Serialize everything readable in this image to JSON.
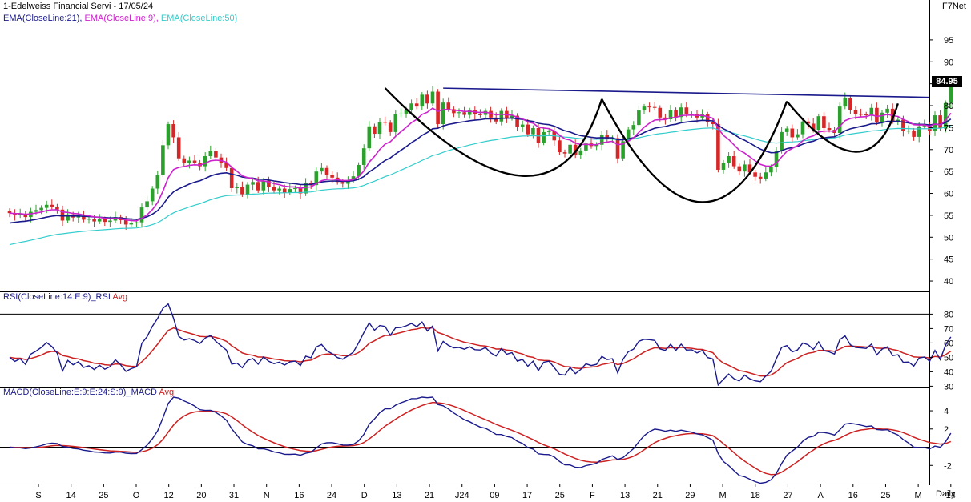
{
  "header": {
    "title": "1-Edelweiss Financial Servi - 17/05/24",
    "brand": "F7Net",
    "period": "Daily",
    "last_price": "84.95"
  },
  "colors": {
    "candle_up": "#2ca02c",
    "candle_down": "#d62728",
    "ema21": "#1a1a8c",
    "ema9": "#cc22cc",
    "ema50": "#33cccc",
    "signal": "#cc2222",
    "main": "#1a1a8c",
    "pattern": "#000000",
    "neckline": "#1a1a8c"
  },
  "chart_data": [
    {
      "type": "candlestick",
      "legend": [
        {
          "label": "EMA(CloseLine:21),",
          "color": "#1a1a8c"
        },
        {
          "label": "EMA(CloseLine:9),",
          "color": "#cc22cc"
        },
        {
          "label": "EMA(CloseLine:50)",
          "color": "#33cccc"
        }
      ],
      "ylim": [
        38,
        99
      ],
      "yticks": [
        40,
        45,
        50,
        55,
        60,
        65,
        70,
        75,
        80,
        85,
        90,
        95
      ],
      "x_tick_labels": [
        "S",
        "14",
        "25",
        "O",
        "12",
        "20",
        "31",
        "N",
        "16",
        "24",
        "D",
        "13",
        "21",
        "J24",
        "09",
        "17",
        "25",
        "F",
        "13",
        "21",
        "29",
        "M",
        "18",
        "27",
        "A",
        "16",
        "25",
        "M",
        "14"
      ],
      "last_price": 84.95,
      "close": [
        55.5,
        55.0,
        55.3,
        54.6,
        55.8,
        56.2,
        56.7,
        57.4,
        57.0,
        56.3,
        53.8,
        55.2,
        54.5,
        54.9,
        54.0,
        54.2,
        53.6,
        54.1,
        53.5,
        53.8,
        54.6,
        53.9,
        52.9,
        53.2,
        53.4,
        56.8,
        58.2,
        61.1,
        64.3,
        71.0,
        75.8,
        72.8,
        68.0,
        66.9,
        67.5,
        67.0,
        66.2,
        68.5,
        69.7,
        68.2,
        67.0,
        65.8,
        61.2,
        61.5,
        59.8,
        62.0,
        62.6,
        60.7,
        62.9,
        61.5,
        60.7,
        61.1,
        60.2,
        61.0,
        61.2,
        60.0,
        62.3,
        61.9,
        65.0,
        65.8,
        64.3,
        63.6,
        62.6,
        62.2,
        63.0,
        63.9,
        66.5,
        70.3,
        75.3,
        73.6,
        76.3,
        76.1,
        74.0,
        78.0,
        78.2,
        79.1,
        80.5,
        79.8,
        82.5,
        80.5,
        83.2,
        75.8,
        80.7,
        79.2,
        78.3,
        78.5,
        77.9,
        78.9,
        78.0,
        77.9,
        78.8,
        77.3,
        76.4,
        78.8,
        77.2,
        77.7,
        75.2,
        75.7,
        73.5,
        74.9,
        71.6,
        74.0,
        74.3,
        72.1,
        69.4,
        69.1,
        71.1,
        68.7,
        69.8,
        71.4,
        70.8,
        71.1,
        73.3,
        72.4,
        72.6,
        68.0,
        71.9,
        74.6,
        75.6,
        78.9,
        79.8,
        79.7,
        79.5,
        77.3,
        76.9,
        79.0,
        77.4,
        79.6,
        78.0,
        78.1,
        77.3,
        78.0,
        76.2,
        75.8,
        65.4,
        67.0,
        68.5,
        66.2,
        65.0,
        66.6,
        64.8,
        63.8,
        63.4,
        64.8,
        66.0,
        69.7,
        74.0,
        74.8,
        72.8,
        73.5,
        76.4,
        75.9,
        74.5,
        77.6,
        74.9,
        74.5,
        73.8,
        79.8,
        81.8,
        79.0,
        78.1,
        78.0,
        77.8,
        79.5,
        76.2,
        78.4,
        79.3,
        76.5,
        76.8,
        74.2,
        74.3,
        72.9,
        75.3,
        75.6,
        74.3,
        77.8,
        74.8,
        80.6,
        84.95
      ],
      "open": [
        56.0,
        55.5,
        55.0,
        55.3,
        54.6,
        55.8,
        56.2,
        56.7,
        57.4,
        57.0,
        56.3,
        53.8,
        55.2,
        54.5,
        54.9,
        54.0,
        54.2,
        53.6,
        54.1,
        53.5,
        53.8,
        54.6,
        53.9,
        52.9,
        53.2,
        53.4,
        56.8,
        58.2,
        61.1,
        64.3,
        71.0,
        75.8,
        72.8,
        68.0,
        66.9,
        67.5,
        67.0,
        66.2,
        68.5,
        69.7,
        68.2,
        67.0,
        65.8,
        61.2,
        61.5,
        59.8,
        62.0,
        62.6,
        60.7,
        62.9,
        61.5,
        60.7,
        61.1,
        60.2,
        61.0,
        61.2,
        60.0,
        62.3,
        61.9,
        65.0,
        65.8,
        64.3,
        63.6,
        62.6,
        62.2,
        63.0,
        63.9,
        66.5,
        70.3,
        75.3,
        73.6,
        76.3,
        76.1,
        74.0,
        78.0,
        78.2,
        79.1,
        80.5,
        79.8,
        82.5,
        80.5,
        83.2,
        75.8,
        80.7,
        79.2,
        78.3,
        78.5,
        77.9,
        78.9,
        78.0,
        77.9,
        78.8,
        77.3,
        76.4,
        78.8,
        77.2,
        77.7,
        75.2,
        75.7,
        73.5,
        74.9,
        71.6,
        74.0,
        74.3,
        72.1,
        69.4,
        69.1,
        71.1,
        68.7,
        69.8,
        71.4,
        70.8,
        71.1,
        73.3,
        72.4,
        72.6,
        68.0,
        71.9,
        74.6,
        75.6,
        78.9,
        79.8,
        79.7,
        79.5,
        77.3,
        76.9,
        79.0,
        77.4,
        79.6,
        78.0,
        78.1,
        77.3,
        78.0,
        76.2,
        75.8,
        65.4,
        67.0,
        68.5,
        66.2,
        65.0,
        66.6,
        64.8,
        63.8,
        63.4,
        64.8,
        66.0,
        69.7,
        74.0,
        74.8,
        72.8,
        73.5,
        76.4,
        75.9,
        74.5,
        77.6,
        74.9,
        74.5,
        73.8,
        79.8,
        81.8,
        79.0,
        78.1,
        78.0,
        77.8,
        79.5,
        76.2,
        78.4,
        79.3,
        76.5,
        76.8,
        74.2,
        74.3,
        72.9,
        75.3,
        75.6,
        74.3,
        77.8,
        74.8,
        80.6
      ],
      "neckline": {
        "start_index": 82,
        "start_price": 84.0,
        "end_price": 81.9
      }
    },
    {
      "type": "line",
      "title": "RSI(CloseLine:14:E:9)_RSI",
      "legend": [
        {
          "label": "RSI(CloseLine:14:E:9)_RSI",
          "color": "#1a1a8c"
        },
        {
          "label": "Avg",
          "color": "#cc2222"
        }
      ],
      "ylim": [
        28,
        88
      ],
      "yticks": [
        30,
        40,
        50,
        60,
        70,
        80
      ],
      "reference_line": 80
    },
    {
      "type": "line",
      "title": "MACD(CloseLine:E:9:E:24:S:9)_MACD",
      "legend": [
        {
          "label": "MACD(CloseLine:E:9:E:24:S:9)_MACD",
          "color": "#1a1a8c"
        },
        {
          "label": "Avg",
          "color": "#cc2222"
        }
      ],
      "ylim": [
        -4.0,
        5.5
      ],
      "yticks": [
        -2,
        2,
        4
      ],
      "reference_line": 0
    }
  ]
}
